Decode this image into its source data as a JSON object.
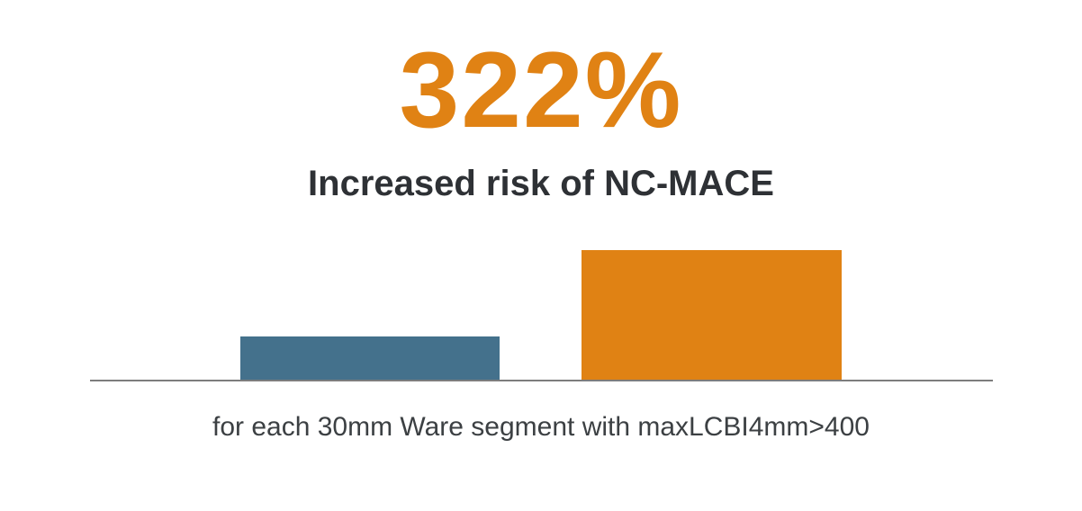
{
  "headline": {
    "value": "322%",
    "color": "#E08214"
  },
  "subtitle": {
    "text": "Increased risk of NC-MACE",
    "color": "#2E3135"
  },
  "caption": {
    "text": "for each 30mm Ware segment with maxLCBI4mm>400",
    "color": "#3C4043"
  },
  "chart_data": {
    "type": "bar",
    "title": "322%",
    "subtitle": "Increased risk of NC-MACE",
    "caption": "for each 30mm Ware segment with maxLCBI4mm>400",
    "categories": [
      "",
      ""
    ],
    "values": [
      1,
      3
    ],
    "value_note": "no numeric axis or tick labels shown; heights are relative, right bar is ~3x the left bar",
    "bar_colors": [
      "#44718C",
      "#E08214"
    ],
    "axis_line_color": "#7D7D7D",
    "ylim": [
      0,
      3.3
    ],
    "grid": false,
    "legend": false,
    "tick_labels": false
  }
}
